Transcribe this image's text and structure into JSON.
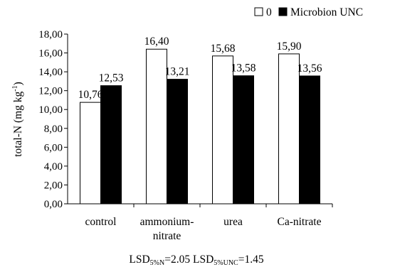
{
  "chart_data": {
    "type": "bar",
    "categories": [
      [
        "control"
      ],
      [
        "ammonium-",
        "nitrate"
      ],
      [
        "urea"
      ],
      [
        "Ca-nitrate"
      ]
    ],
    "series": [
      {
        "name": "0",
        "values": [
          10.76,
          16.4,
          15.68,
          15.9
        ],
        "labels": [
          "10,76",
          "16,40",
          "15,68",
          "15,90"
        ],
        "color": "#ffffff"
      },
      {
        "name": "Microbion UNC",
        "values": [
          12.53,
          13.21,
          13.58,
          13.56
        ],
        "labels": [
          "12,53",
          "13,21",
          "13,58",
          "13,56"
        ],
        "color": "#000000"
      }
    ],
    "ylabel_main": "total-N (mg kg",
    "ylabel_sup": "-1",
    "ylabel_tail": ")",
    "ylim": [
      0,
      18
    ],
    "yticks": [
      "0,00",
      "2,00",
      "4,00",
      "6,00",
      "8,00",
      "10,00",
      "12,00",
      "14,00",
      "16,00",
      "18,00"
    ],
    "legend_position": "top-right",
    "grid": false,
    "footnote": {
      "lsd1": "LSD",
      "lsd1_sub": "5%N",
      "lsd1_val": "=2.05 ",
      "lsd2": "LSD",
      "lsd2_sub": "5%UNC",
      "lsd2_val": "=1.45"
    }
  }
}
